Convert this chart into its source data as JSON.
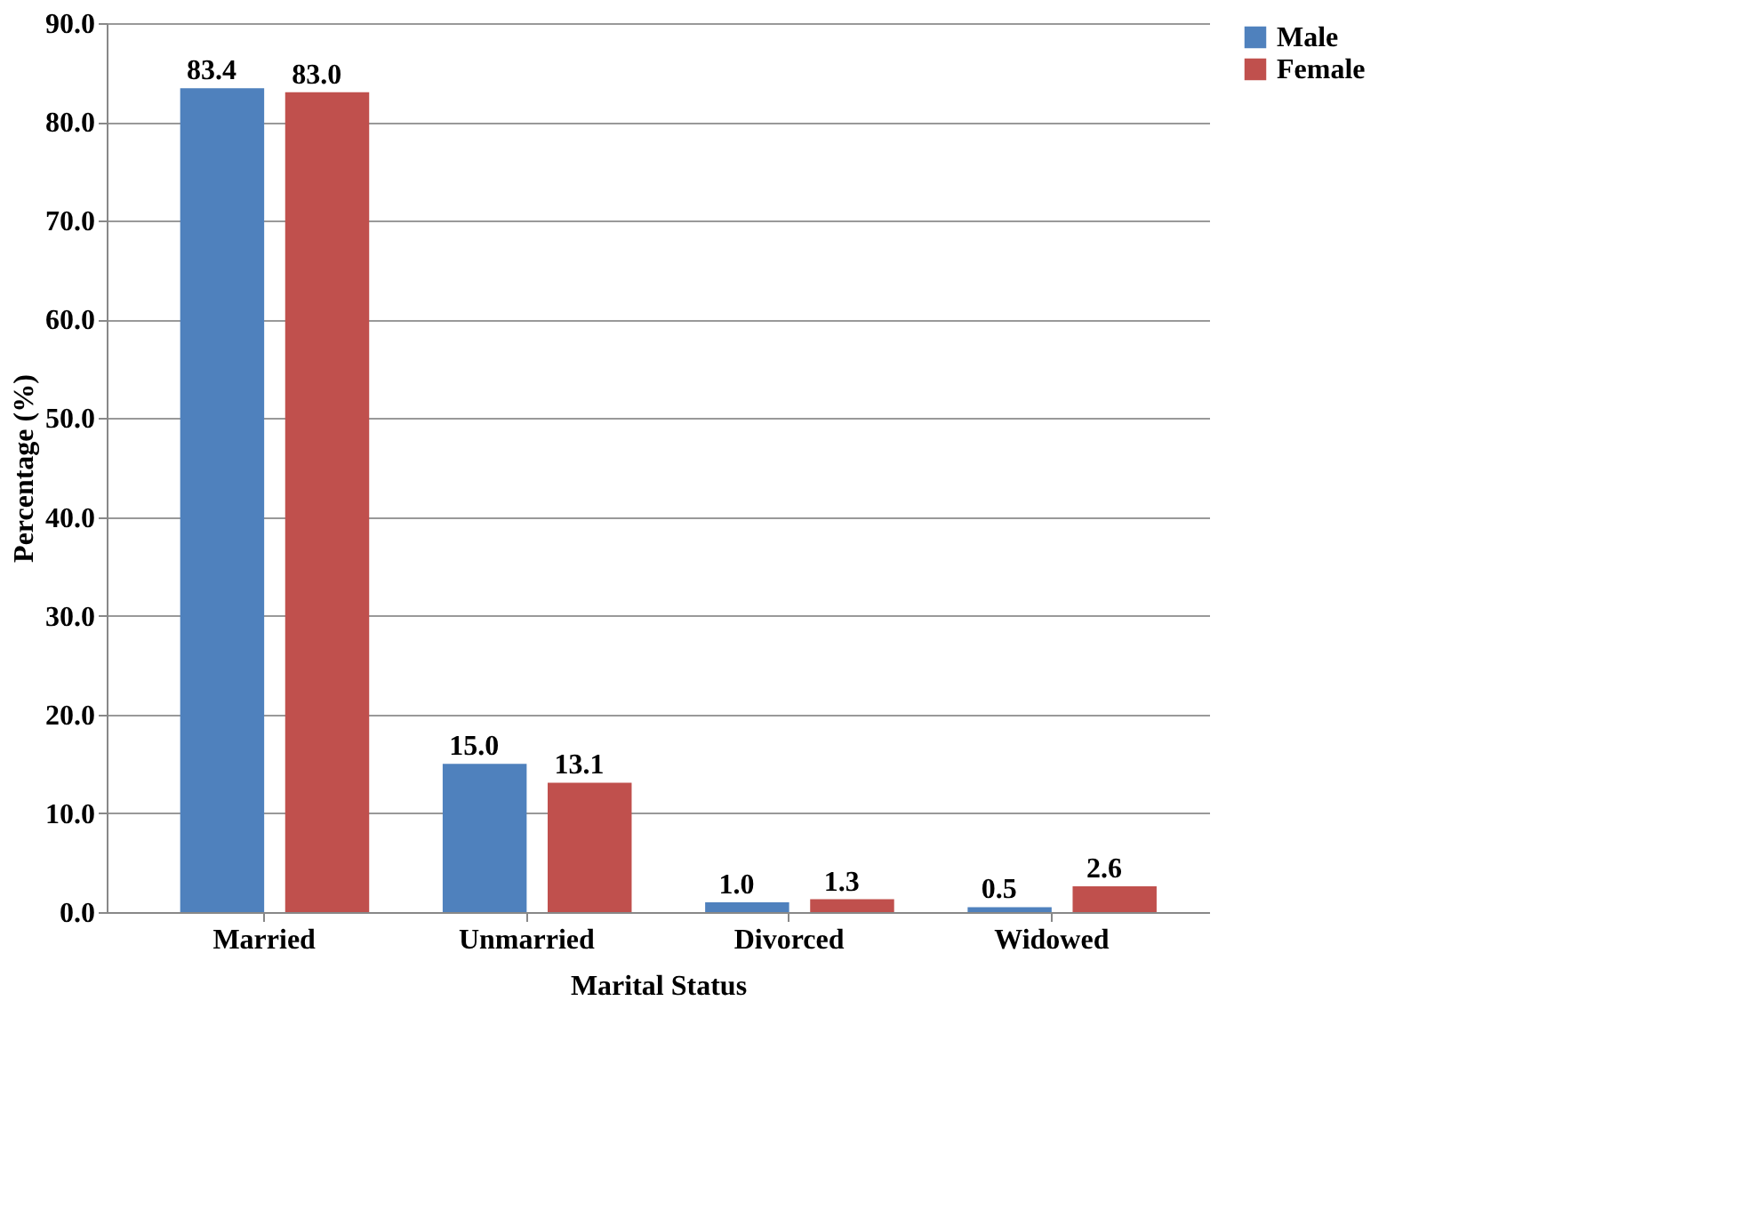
{
  "chart_data": {
    "type": "bar",
    "xlabel": "Marital Status",
    "ylabel": "Percentage (%)",
    "categories": [
      "Married",
      "Unmarried",
      "Divorced",
      "Widowed"
    ],
    "series": [
      {
        "name": "Male",
        "color": "#4f81bd",
        "values": [
          83.4,
          15.0,
          1.0,
          0.5
        ],
        "value_labels": [
          "83.4",
          "15.0",
          "1.0",
          "0.5"
        ]
      },
      {
        "name": "Female",
        "color": "#c0504d",
        "values": [
          83.0,
          13.1,
          1.3,
          2.6
        ],
        "value_labels": [
          "83.0",
          "13.1",
          "1.3",
          "2.6"
        ]
      }
    ],
    "ylim": [
      0,
      90
    ],
    "yticks": [
      {
        "value": 0,
        "label": "0.0"
      },
      {
        "value": 10,
        "label": "10.0"
      },
      {
        "value": 20,
        "label": "20.0"
      },
      {
        "value": 30,
        "label": "30.0"
      },
      {
        "value": 40,
        "label": "40.0"
      },
      {
        "value": 50,
        "label": "50.0"
      },
      {
        "value": 60,
        "label": "60.0"
      },
      {
        "value": 70,
        "label": "70.0"
      },
      {
        "value": 80,
        "label": "80.0"
      },
      {
        "value": 90,
        "label": "90.0"
      }
    ],
    "grid": "y",
    "legend": "right"
  }
}
